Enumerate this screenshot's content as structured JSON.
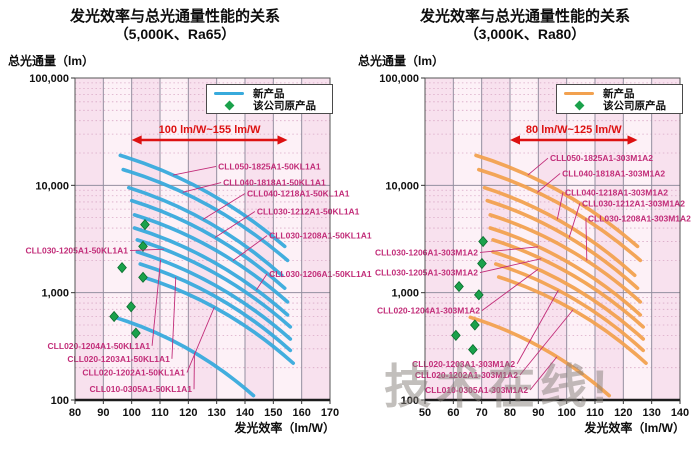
{
  "page": {
    "watermark": "技术在线!"
  },
  "chart_data": [
    {
      "type": "line",
      "title": "发光效率与总光通量性能的关系",
      "subtitle": "（5,000K、Ra65）",
      "xlabel": "发光效率（lm/W）",
      "ylabel": "总光通量（lm）",
      "xlim": [
        80,
        170
      ],
      "xticks": [
        80,
        90,
        100,
        110,
        120,
        130,
        140,
        150,
        160,
        170
      ],
      "ylim": [
        100,
        100000
      ],
      "yscale": "log",
      "yticks": [
        100,
        1000,
        10000,
        100000
      ],
      "ytick_labels": [
        "100",
        "1,000",
        "10,000",
        "100,000"
      ],
      "grid": true,
      "legend": {
        "position": "top-right",
        "line_label": "新产品",
        "marker_label": "该公司原产品"
      },
      "line_color": "#38aadc",
      "marker_color": "#1aa14b",
      "annotation": {
        "text": "100 lm/W~155 lm/W",
        "x_from": 100,
        "x_to": 155,
        "color": "#dd1111"
      },
      "series": [
        {
          "name": "CLL050-1825A1-50KL1A1",
          "points": [
            [
              96,
              19000
            ],
            [
              154,
              2700
            ]
          ]
        },
        {
          "name": "CLL040-1818A1-50KL1A1",
          "points": [
            [
              97,
              14000
            ],
            [
              155,
              2000
            ]
          ]
        },
        {
          "name": "CLL040-1218A1-50KL1A1",
          "points": [
            [
              99,
              9500
            ],
            [
              153,
              1450
            ]
          ]
        },
        {
          "name": "CLL030-1212A1-50KL1A1",
          "points": [
            [
              100,
              7200
            ],
            [
              154,
              1100
            ]
          ]
        },
        {
          "name": "CLL030-1208A1-50KL1A1",
          "points": [
            [
              101,
              5300
            ],
            [
              155,
              820
            ]
          ]
        },
        {
          "name": "CLL030-1206A1-50KL1A1",
          "points": [
            [
              101,
              4000
            ],
            [
              155,
              620
            ]
          ]
        },
        {
          "name": "CLL030-1205A1-50KL1A1",
          "points": [
            [
              102,
              3100
            ],
            [
              156,
              480
            ]
          ]
        },
        {
          "name": "CLL020-1204A1-50KL1A1",
          "points": [
            [
              102,
              2400
            ],
            [
              156,
              370
            ]
          ]
        },
        {
          "name": "CLL020-1203A1-50KL1A1",
          "points": [
            [
              103,
              1850
            ],
            [
              156,
              290
            ]
          ]
        },
        {
          "name": "CLL020-1202A1-50KL1A1",
          "points": [
            [
              104,
              1400
            ],
            [
              157,
              220
            ]
          ]
        },
        {
          "name": "CLL010-0305A1-50KL1A1",
          "points": [
            [
              94,
              590
            ],
            [
              143,
              110
            ]
          ]
        }
      ],
      "competitor_points": [
        [
          104.7,
          4300
        ],
        [
          104,
          2700
        ],
        [
          96.6,
          1710
        ],
        [
          104,
          1390
        ],
        [
          99.8,
          740
        ],
        [
          93.8,
          600
        ],
        [
          101.5,
          420
        ]
      ],
      "series_labels": [
        {
          "text": "CLL050-1825A1-50KL1A1",
          "at": [
            130.5,
            15000
          ],
          "anchor": "start",
          "series": 0,
          "t": 0.3
        },
        {
          "text": "CLL040-1818A1-50KL1A1",
          "at": [
            132.3,
            10600
          ],
          "anchor": "start",
          "series": 1,
          "t": 0.34
        },
        {
          "text": "CLL040-1218A1-50KL1A1",
          "at": [
            140.7,
            8400
          ],
          "anchor": "start",
          "series": 2,
          "t": 0.46
        },
        {
          "text": "CLL030-1212A1-50KL1A1",
          "at": [
            144.2,
            5700
          ],
          "anchor": "start",
          "series": 3,
          "t": 0.52
        },
        {
          "text": "CLL030-1208A1-50KL1A1",
          "at": [
            148.5,
            3400
          ],
          "anchor": "start",
          "series": 4,
          "t": 0.62
        },
        {
          "text": "CLL030-1206A1-50KL1A1",
          "at": [
            148.5,
            1500
          ],
          "anchor": "start",
          "series": 5,
          "t": 0.78
        },
        {
          "text": "CLL030-1205A1-50KL1A1",
          "at": [
            98.7,
            2470
          ],
          "anchor": "end",
          "series": 6,
          "t": 0.16
        },
        {
          "text": "CLL020-1204A1-50KL1A1",
          "at": [
            106.5,
            320
          ],
          "anchor": "end",
          "series": 7,
          "t": 0.14
        },
        {
          "text": "CLL020-1203A1-50KL1A1",
          "at": [
            113.5,
            242
          ],
          "anchor": "end",
          "series": 8,
          "t": 0.22
        },
        {
          "text": "CLL020-1202A1-50KL1A1",
          "at": [
            118.8,
            180
          ],
          "anchor": "end",
          "series": 9,
          "t": 0.45
        },
        {
          "text": "CLL010-0305A1-50KL1A1",
          "at": [
            121.3,
            126
          ],
          "anchor": "end",
          "series": 10,
          "t": 0.55
        }
      ]
    },
    {
      "type": "line",
      "title": "发光效率与总光通量性能的关系",
      "subtitle": "（3,000K、Ra80）",
      "xlabel": "发光效率（lm/W）",
      "ylabel": "总光通量（lm）",
      "xlim": [
        50,
        140
      ],
      "xticks": [
        50,
        60,
        70,
        80,
        90,
        100,
        110,
        120,
        130,
        140
      ],
      "ylim": [
        100,
        100000
      ],
      "yscale": "log",
      "yticks": [
        100,
        1000,
        10000,
        100000
      ],
      "ytick_labels": [
        "100",
        "1,000",
        "10,000",
        "100,000"
      ],
      "grid": true,
      "legend": {
        "position": "top-right",
        "line_label": "新产品",
        "marker_label": "该公司原产品"
      },
      "line_color": "#f2a14f",
      "marker_color": "#1aa14b",
      "annotation": {
        "text": "80 lm/W~125 lm/W",
        "x_from": 80,
        "x_to": 125,
        "color": "#dd1111"
      },
      "series": [
        {
          "name": "CLL050-1825A1-303M1A2",
          "points": [
            [
              68,
              19000
            ],
            [
              125,
              2700
            ]
          ]
        },
        {
          "name": "CLL040-1818A1-303M1A2",
          "points": [
            [
              69,
              14000
            ],
            [
              126,
              2000
            ]
          ]
        },
        {
          "name": "CLL040-1218A1-303M1A2",
          "points": [
            [
              71,
              9500
            ],
            [
              124,
              1450
            ]
          ]
        },
        {
          "name": "CLL030-1212A1-303M1A2",
          "points": [
            [
              72,
              7200
            ],
            [
              125,
              1100
            ]
          ]
        },
        {
          "name": "CLL030-1208A1-303M1A2",
          "points": [
            [
              73,
              5300
            ],
            [
              126,
              820
            ]
          ]
        },
        {
          "name": "CLL030-1206A1-303M1A2",
          "points": [
            [
              73,
              4000
            ],
            [
              126,
              620
            ]
          ]
        },
        {
          "name": "CLL030-1205A1-303M1A2",
          "points": [
            [
              74,
              3100
            ],
            [
              127,
              480
            ]
          ]
        },
        {
          "name": "CLL020-1204A1-303M1A2",
          "points": [
            [
              74,
              2400
            ],
            [
              127,
              370
            ]
          ]
        },
        {
          "name": "CLL020-1203A1-303M1A2",
          "points": [
            [
              75,
              1850
            ],
            [
              127,
              290
            ]
          ]
        },
        {
          "name": "CLL020-1202A1-303M1A2",
          "points": [
            [
              76,
              1400
            ],
            [
              128,
              220
            ]
          ]
        },
        {
          "name": "CLL010-0305A1-303M1A2",
          "points": [
            [
              66,
              590
            ],
            [
              115,
              110
            ]
          ]
        }
      ],
      "competitor_points": [
        [
          70.5,
          3000
        ],
        [
          70.1,
          1870
        ],
        [
          62,
          1140
        ],
        [
          69,
          955
        ],
        [
          67.6,
          500
        ],
        [
          60.9,
          400
        ],
        [
          66.9,
          295
        ]
      ],
      "series_labels": [
        {
          "text": "CLL050-1825A1-303M1A2",
          "at": [
            94.1,
            17900
          ],
          "anchor": "start",
          "series": 0,
          "t": 0.3
        },
        {
          "text": "CLL040-1818A1-303M1A2",
          "at": [
            98.4,
            12900
          ],
          "anchor": "start",
          "series": 1,
          "t": 0.34
        },
        {
          "text": "CLL040-1218A1-303M1A2",
          "at": [
            99.4,
            8600
          ],
          "anchor": "start",
          "series": 2,
          "t": 0.46
        },
        {
          "text": "CLL030-1212A1-303M1A2",
          "at": [
            105.4,
            6800
          ],
          "anchor": "start",
          "series": 3,
          "t": 0.52
        },
        {
          "text": "CLL030-1208A1-303M1A2",
          "at": [
            107.5,
            4930
          ],
          "anchor": "start",
          "series": 4,
          "t": 0.62
        },
        {
          "text": "CLL030-1206A1-303M1A2",
          "at": [
            68.7,
            2370
          ],
          "anchor": "end",
          "series": 5,
          "t": 0.3
        },
        {
          "text": "CLL030-1205A1-303M1A2",
          "at": [
            68.7,
            1540
          ],
          "anchor": "end",
          "series": 6,
          "t": 0.3
        },
        {
          "text": "CLL020-1204A1-303M1A2",
          "at": [
            69.4,
            680
          ],
          "anchor": "end",
          "series": 7,
          "t": 0.28
        },
        {
          "text": "CLL020-1203A1-303M1A2",
          "at": [
            81.8,
            217
          ],
          "anchor": "end",
          "series": 8,
          "t": 0.4
        },
        {
          "text": "CLL020-1202A1-303M1A2",
          "at": [
            82.8,
            171
          ],
          "anchor": "end",
          "series": 9,
          "t": 0.48
        },
        {
          "text": "CLL010-0305A1-303M1A2",
          "at": [
            86.4,
            124
          ],
          "anchor": "end",
          "series": 10,
          "t": 0.6
        }
      ]
    }
  ]
}
